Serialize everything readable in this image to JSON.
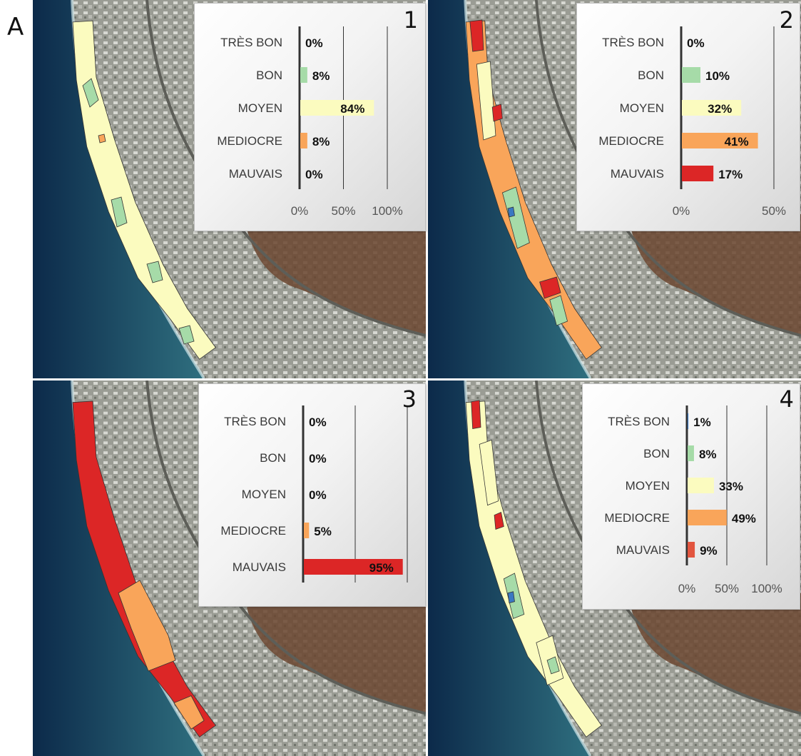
{
  "figure_letter": "A",
  "colors": {
    "tres_bon": "#3a78c2",
    "bon": "#a6dba8",
    "moyen": "#fbfbbf",
    "mediocre": "#f9a55a",
    "mauvais": "#dc2626",
    "ocean_deep": "#0c2a4a",
    "ocean_shallow": "#2f6f7f",
    "urban": "#8c8f88",
    "hillside": "#6b4630",
    "outline": "#333333"
  },
  "panels": [
    {
      "number": "1"
    },
    {
      "number": "2"
    },
    {
      "number": "3"
    },
    {
      "number": "4"
    }
  ],
  "chart_data": [
    {
      "type": "bar",
      "orientation": "horizontal",
      "panel": "1",
      "categories": [
        "TRÈS BON",
        "BON",
        "MOYEN",
        "MEDIOCRE",
        "MAUVAIS"
      ],
      "values": [
        0,
        8,
        84,
        8,
        0
      ],
      "value_labels": [
        "0%",
        "8%",
        "84%",
        "8%",
        "0%"
      ],
      "bar_colors": [
        "#3a78c2",
        "#a6dba8",
        "#fbfbbf",
        "#f9a55a",
        "#dc2626"
      ],
      "xlim": [
        0,
        100
      ],
      "ticks": [
        0,
        50,
        100
      ],
      "tick_labels": [
        "0%",
        "50%",
        "100%"
      ],
      "grid": true
    },
    {
      "type": "bar",
      "orientation": "horizontal",
      "panel": "2",
      "categories": [
        "TRÈS BON",
        "BON",
        "MOYEN",
        "MEDIOCRE",
        "MAUVAIS"
      ],
      "values": [
        0,
        10,
        32,
        41,
        17
      ],
      "value_labels": [
        "0%",
        "10%",
        "32%",
        "41%",
        "17%"
      ],
      "bar_colors": [
        "#3a78c2",
        "#a6dba8",
        "#fbfbbf",
        "#f9a55a",
        "#dc2626"
      ],
      "xlim": [
        0,
        50
      ],
      "ticks": [
        0,
        50
      ],
      "tick_labels": [
        "0%",
        "50%"
      ],
      "grid": true
    },
    {
      "type": "bar",
      "orientation": "horizontal",
      "panel": "3",
      "categories": [
        "TRÈS BON",
        "BON",
        "MOYEN",
        "MEDIOCRE",
        "MAUVAIS"
      ],
      "values": [
        0,
        0,
        0,
        5,
        95
      ],
      "value_labels": [
        "0%",
        "0%",
        "0%",
        "5%",
        "95%"
      ],
      "bar_colors": [
        "#3a78c2",
        "#a6dba8",
        "#fbfbbf",
        "#f9a55a",
        "#dc2626"
      ],
      "xlim": [
        0,
        100
      ],
      "ticks": [
        0,
        50,
        100
      ],
      "tick_labels": [
        "",
        "",
        ""
      ],
      "grid": true
    },
    {
      "type": "bar",
      "orientation": "horizontal",
      "panel": "4",
      "categories": [
        "TRÈS BON",
        "BON",
        "MOYEN",
        "MEDIOCRE",
        "MAUVAIS"
      ],
      "values": [
        1,
        8,
        33,
        49,
        9
      ],
      "value_labels": [
        "1%",
        "8%",
        "33%",
        "49%",
        "9%"
      ],
      "bar_colors": [
        "#3a78c2",
        "#a6dba8",
        "#fbfbbf",
        "#f9a55a",
        "#e2553f"
      ],
      "xlim": [
        0,
        100
      ],
      "ticks": [
        0,
        50,
        100
      ],
      "tick_labels": [
        "0%",
        "50%",
        "100%"
      ],
      "grid": true
    }
  ]
}
